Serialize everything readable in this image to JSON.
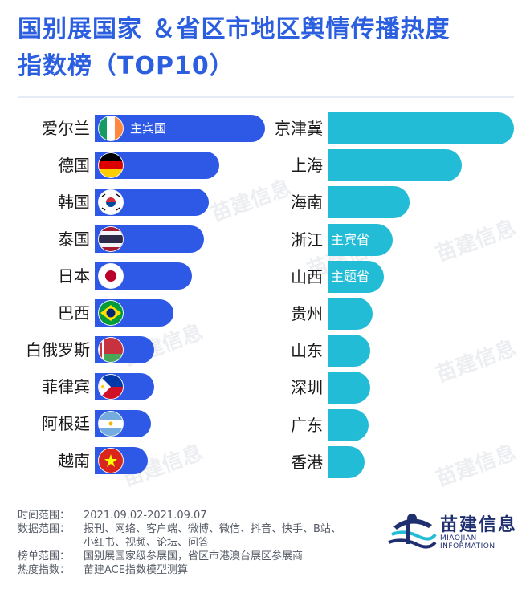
{
  "header": {
    "title_line1": "国别展国家 ＆省区市地区舆情传播热度",
    "title_line2": "指数榜（TOP10）"
  },
  "chart_data": [
    {
      "type": "bar",
      "orientation": "horizontal",
      "categories": [
        "爱尔兰",
        "德国",
        "韩国",
        "泰国",
        "日本",
        "巴西",
        "白俄罗斯",
        "菲律宾",
        "阿根廷",
        "越南"
      ],
      "values": [
        100,
        73,
        67,
        64,
        57,
        46,
        35,
        35,
        33,
        31
      ],
      "flags": [
        "ireland-flag-icon",
        "germany-flag-icon",
        "korea-flag-icon",
        "thailand-flag-icon",
        "japan-flag-icon",
        "brazil-flag-icon",
        "belarus-flag-icon",
        "philippines-flag-icon",
        "argentina-flag-icon",
        "vietnam-flag-icon"
      ],
      "annotations": [
        {
          "category": "爱尔兰",
          "text": "主宾国"
        }
      ],
      "color": "#2d59e6",
      "xlim": [
        0,
        100
      ]
    },
    {
      "type": "bar",
      "orientation": "horizontal",
      "categories": [
        "京津冀",
        "上海",
        "海南",
        "浙江",
        "山西",
        "贵州",
        "山东",
        "深圳",
        "广东",
        "香港"
      ],
      "values": [
        100,
        72,
        44,
        35,
        30,
        24,
        23,
        23,
        22,
        20
      ],
      "annotations": [
        {
          "category": "浙江",
          "text": "主宾省"
        },
        {
          "category": "山西",
          "text": "主题省"
        }
      ],
      "color": "#22bcd6",
      "xlim": [
        0,
        100
      ]
    }
  ],
  "watermark": "苗建信息",
  "notes": [
    {
      "key": "时间范围：",
      "value": "2021.09.02-2021.09.07"
    },
    {
      "key": "数据范围：",
      "value": "报刊、网络、客户端、微博、微信、抖音、快手、B站、"
    },
    {
      "key": "",
      "value": "小红书、视频、论坛、问答"
    },
    {
      "key": "榜单范围：",
      "value": "国别展国家级参展国，省区市港澳台展区参展商"
    },
    {
      "key": "热度指数：",
      "value": "苗建ACE指数模型测算"
    }
  ],
  "logo": {
    "name": "苗建信息",
    "subtitle": "MIAOJIAN INFORMATION"
  }
}
